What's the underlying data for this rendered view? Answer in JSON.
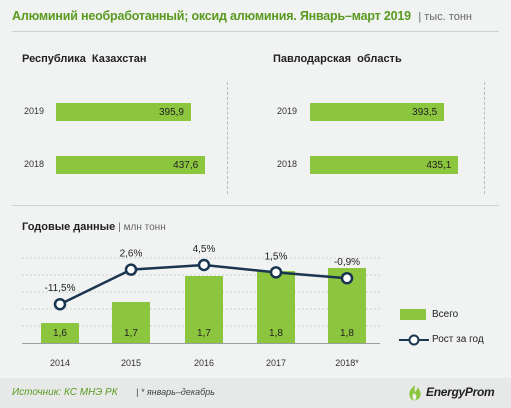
{
  "title": "Алюминий необработанный; оксид алюминия. Январь–март 2019",
  "unit": "| тыс. тонн",
  "regions": [
    {
      "name": "Республика  Казахстан",
      "rows": [
        {
          "year": "2019",
          "value": 395.9,
          "label": "395,9"
        },
        {
          "year": "2018",
          "value": 437.6,
          "label": "437,6"
        }
      ]
    },
    {
      "name": "Павлодарская  область",
      "rows": [
        {
          "year": "2019",
          "value": 393.5,
          "label": "393,5"
        },
        {
          "year": "2018",
          "value": 435.1,
          "label": "435,1"
        }
      ]
    }
  ],
  "annual": {
    "title": "Годовые данные",
    "unit": "| млн тонн",
    "legend_total": "Всего",
    "legend_growth": "Рост за год"
  },
  "chart_data": [
    {
      "type": "bar",
      "orientation": "horizontal",
      "title": "Республика  Казахстан",
      "categories": [
        "2019",
        "2018"
      ],
      "values": [
        395.9,
        437.6
      ],
      "data_labels": [
        "395,9",
        "437,6"
      ]
    },
    {
      "type": "bar",
      "orientation": "horizontal",
      "title": "Павлодарская  область",
      "categories": [
        "2019",
        "2018"
      ],
      "values": [
        393.5,
        435.1
      ],
      "data_labels": [
        "393,5",
        "435,1"
      ]
    },
    {
      "type": "bar",
      "title": "Годовые данные",
      "categories": [
        "2014",
        "2015",
        "2016",
        "2017",
        "2018*"
      ],
      "series": [
        {
          "name": "Всего",
          "type": "bar",
          "values": [
            1.6,
            1.7,
            1.7,
            1.8,
            1.8
          ],
          "data_labels": [
            "1,6",
            "1,7",
            "1,7",
            "1,8",
            "1,8"
          ]
        },
        {
          "name": "Рост за год",
          "type": "line",
          "values": [
            -11.5,
            2.6,
            4.5,
            1.5,
            -0.9
          ],
          "data_labels": [
            "-11,5%",
            "2,6%",
            "4,5%",
            "1,5%",
            "-0,9%"
          ]
        }
      ],
      "legend": "right"
    }
  ],
  "footer": {
    "source": "Источник: КС МНЭ РК",
    "note": "| * январь–декабрь",
    "logo": "EnergyProm"
  },
  "colors": {
    "accent": "#8cc63f",
    "title": "#5a9a1f",
    "line": "#1a3550"
  }
}
